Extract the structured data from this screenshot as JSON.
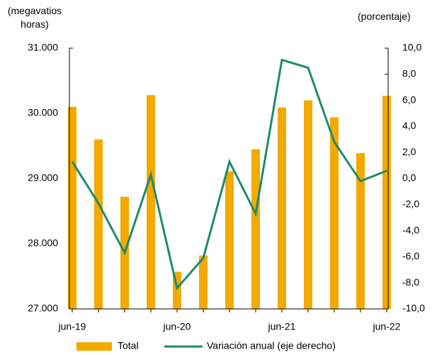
{
  "chart_data": {
    "type": "bar_line",
    "y_axis_label": "(megavatios horas)",
    "y2_axis_label": "(porcentaje)",
    "categories": [
      "jun-19",
      null,
      null,
      null,
      "jun-20",
      null,
      null,
      null,
      "jun-21",
      null,
      null,
      null,
      "jun-22"
    ],
    "series": [
      {
        "name": "Total",
        "type": "bar",
        "color": "#f2a900",
        "values": [
          30100,
          29600,
          28720,
          30280,
          27570,
          27820,
          29110,
          29450,
          30090,
          30200,
          29940,
          29390,
          30270
        ]
      },
      {
        "name": "Variación anual (eje derecho)",
        "type": "line",
        "axis": "y2",
        "color": "#1f8a6c",
        "values": [
          1.3,
          -1.9,
          -5.7,
          0.3,
          -8.4,
          -6.1,
          1.3,
          -2.7,
          9.1,
          8.5,
          2.8,
          -0.2,
          0.6
        ]
      }
    ],
    "ylim": [
      27000,
      31000
    ],
    "yticks": [
      {
        "value": 27000,
        "label": "27.000"
      },
      {
        "value": 28000,
        "label": "28.000"
      },
      {
        "value": 29000,
        "label": "29.000"
      },
      {
        "value": 30000,
        "label": "30.000"
      },
      {
        "value": 31000,
        "label": "31.000"
      }
    ],
    "y2lim": [
      -10,
      10
    ],
    "y2ticks": [
      {
        "value": -10,
        "label": "-10,0"
      },
      {
        "value": -8,
        "label": "-8,0"
      },
      {
        "value": -6,
        "label": "-6,0"
      },
      {
        "value": -4,
        "label": "-4,0"
      },
      {
        "value": -2,
        "label": "-2,0"
      },
      {
        "value": 0,
        "label": "0,0"
      },
      {
        "value": 2,
        "label": "2,0"
      },
      {
        "value": 4,
        "label": "4,0"
      },
      {
        "value": 6,
        "label": "6,0"
      },
      {
        "value": 8,
        "label": "8,0"
      },
      {
        "value": 10,
        "label": "10,0"
      }
    ],
    "legend": "bottom"
  }
}
